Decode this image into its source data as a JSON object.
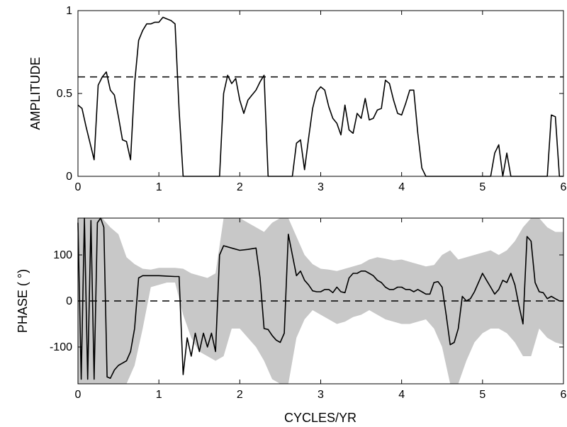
{
  "chart_data": [
    {
      "type": "line",
      "xlabel": "",
      "ylabel": "AMPLITUDE",
      "xlim": [
        0,
        6
      ],
      "ylim": [
        0,
        1
      ],
      "xticks": [
        "0",
        "1",
        "2",
        "3",
        "4",
        "5",
        "6"
      ],
      "yticks": [
        "0",
        "0.5",
        "1"
      ],
      "reference_line": {
        "y": 0.6,
        "style": "dashed"
      },
      "series": [
        {
          "x": [
            0,
            0.05,
            0.1,
            0.15,
            0.2,
            0.25,
            0.3,
            0.35,
            0.4,
            0.45,
            0.5,
            0.55,
            0.6,
            0.65,
            0.7,
            0.75,
            0.8,
            0.85,
            0.9,
            0.95,
            1.0,
            1.05,
            1.1,
            1.15,
            1.2,
            1.25,
            1.3,
            1.35,
            1.4,
            1.45,
            1.5,
            1.55,
            1.6,
            1.65,
            1.7,
            1.75,
            1.8,
            1.85,
            1.9,
            1.95,
            2.0,
            2.05,
            2.1,
            2.15,
            2.2,
            2.25,
            2.3,
            2.35,
            2.4,
            2.45,
            2.5,
            2.55,
            2.6,
            2.65,
            2.7,
            2.75,
            2.8,
            2.85,
            2.9,
            2.95,
            3.0,
            3.05,
            3.1,
            3.15,
            3.2,
            3.25,
            3.3,
            3.35,
            3.4,
            3.45,
            3.5,
            3.55,
            3.6,
            3.65,
            3.7,
            3.75,
            3.8,
            3.85,
            3.9,
            3.95,
            4.0,
            4.05,
            4.1,
            4.15,
            4.2,
            4.25,
            4.3,
            4.35,
            4.4,
            4.45,
            4.5,
            4.55,
            4.6,
            4.65,
            4.7,
            4.75,
            4.8,
            4.85,
            4.9,
            4.95,
            5.0,
            5.05,
            5.1,
            5.15,
            5.2,
            5.25,
            5.3,
            5.35,
            5.4,
            5.45,
            5.5,
            5.55,
            5.6,
            5.65,
            5.7,
            5.75,
            5.8,
            5.85,
            5.9,
            5.95,
            6.0
          ],
          "values": [
            0.43,
            0.41,
            0.3,
            0.2,
            0.1,
            0.55,
            0.6,
            0.63,
            0.52,
            0.49,
            0.36,
            0.22,
            0.21,
            0.1,
            0.56,
            0.82,
            0.88,
            0.92,
            0.92,
            0.93,
            0.93,
            0.96,
            0.95,
            0.94,
            0.92,
            0.4,
            0.0,
            0.0,
            0.0,
            0.0,
            0.0,
            0.0,
            0.0,
            0.0,
            0.0,
            0.0,
            0.5,
            0.61,
            0.56,
            0.59,
            0.46,
            0.38,
            0.46,
            0.49,
            0.52,
            0.57,
            0.61,
            0.0,
            0.0,
            0.0,
            0.0,
            0.0,
            0.0,
            0.0,
            0.2,
            0.22,
            0.04,
            0.23,
            0.41,
            0.51,
            0.54,
            0.52,
            0.42,
            0.35,
            0.32,
            0.25,
            0.43,
            0.28,
            0.26,
            0.38,
            0.35,
            0.47,
            0.34,
            0.35,
            0.4,
            0.41,
            0.58,
            0.56,
            0.46,
            0.38,
            0.37,
            0.44,
            0.52,
            0.52,
            0.26,
            0.05,
            0.0,
            0.0,
            0.0,
            0.0,
            0.0,
            0.0,
            0.0,
            0.0,
            0.0,
            0.0,
            0.0,
            0.0,
            0.0,
            0.0,
            0.0,
            0.0,
            0.0,
            0.14,
            0.19,
            0.0,
            0.14,
            0.0,
            0.0,
            0.0,
            0.0,
            0.0,
            0.0,
            0.0,
            0.0,
            0.0,
            0.0,
            0.37,
            0.36,
            0.0,
            0.0
          ]
        }
      ]
    },
    {
      "type": "line",
      "xlabel": "CYCLES/YR",
      "ylabel": "PHASE ( °)",
      "xlim": [
        0,
        6
      ],
      "ylim": [
        -180,
        180
      ],
      "xticks": [
        "0",
        "1",
        "2",
        "3",
        "4",
        "5",
        "6"
      ],
      "yticks": [
        "-100",
        "0",
        "100"
      ],
      "reference_line": {
        "y": 0,
        "style": "dashed"
      },
      "band_color": "#c8c8c8",
      "band": {
        "x": [
          0,
          0.1,
          0.2,
          0.3,
          0.4,
          0.5,
          0.6,
          0.7,
          0.8,
          0.9,
          1.0,
          1.1,
          1.2,
          1.3,
          1.4,
          1.5,
          1.6,
          1.7,
          1.8,
          1.9,
          2.0,
          2.1,
          2.2,
          2.3,
          2.4,
          2.5,
          2.6,
          2.7,
          2.8,
          2.9,
          3.0,
          3.1,
          3.2,
          3.3,
          3.4,
          3.5,
          3.6,
          3.7,
          3.8,
          3.9,
          4.0,
          4.1,
          4.2,
          4.3,
          4.4,
          4.5,
          4.6,
          4.7,
          4.8,
          4.9,
          5.0,
          5.1,
          5.2,
          5.3,
          5.4,
          5.5,
          5.6,
          5.7,
          5.8,
          5.9,
          6.0
        ],
        "upper": [
          180,
          180,
          180,
          180,
          160,
          145,
          95,
          80,
          70,
          68,
          72,
          72,
          72,
          70,
          60,
          55,
          50,
          60,
          180,
          180,
          180,
          170,
          160,
          150,
          170,
          180,
          180,
          140,
          100,
          80,
          70,
          68,
          65,
          70,
          75,
          80,
          90,
          95,
          92,
          88,
          90,
          85,
          80,
          75,
          78,
          100,
          110,
          90,
          95,
          100,
          105,
          110,
          100,
          110,
          130,
          160,
          180,
          180,
          160,
          150,
          150
        ],
        "lower": [
          -180,
          -180,
          -180,
          -180,
          -180,
          -180,
          -180,
          -140,
          -60,
          30,
          35,
          40,
          40,
          -30,
          -80,
          -110,
          -120,
          -130,
          -120,
          -60,
          -60,
          -80,
          -100,
          -130,
          -170,
          -180,
          -180,
          -80,
          -40,
          -20,
          -30,
          -40,
          -50,
          -45,
          -35,
          -30,
          -20,
          -30,
          -40,
          -45,
          -50,
          -50,
          -45,
          -40,
          -60,
          -100,
          -180,
          -180,
          -130,
          -90,
          -70,
          -60,
          -60,
          -70,
          -90,
          -120,
          -120,
          -60,
          -80,
          -90,
          -95
        ]
      },
      "series": [
        {
          "x": [
            0,
            0.04,
            0.08,
            0.12,
            0.16,
            0.2,
            0.24,
            0.28,
            0.32,
            0.36,
            0.4,
            0.45,
            0.5,
            0.55,
            0.6,
            0.65,
            0.7,
            0.75,
            0.8,
            0.9,
            1.0,
            1.1,
            1.2,
            1.25,
            1.3,
            1.35,
            1.4,
            1.45,
            1.5,
            1.55,
            1.6,
            1.65,
            1.7,
            1.75,
            1.8,
            1.9,
            2.0,
            2.1,
            2.2,
            2.25,
            2.3,
            2.35,
            2.4,
            2.45,
            2.5,
            2.55,
            2.6,
            2.65,
            2.7,
            2.75,
            2.8,
            2.85,
            2.9,
            2.95,
            3.0,
            3.05,
            3.1,
            3.15,
            3.2,
            3.25,
            3.3,
            3.35,
            3.4,
            3.45,
            3.5,
            3.55,
            3.6,
            3.65,
            3.7,
            3.75,
            3.8,
            3.85,
            3.9,
            3.95,
            4.0,
            4.05,
            4.1,
            4.15,
            4.2,
            4.25,
            4.3,
            4.35,
            4.4,
            4.45,
            4.5,
            4.55,
            4.6,
            4.65,
            4.7,
            4.75,
            4.8,
            4.85,
            4.9,
            4.95,
            5.0,
            5.05,
            5.1,
            5.15,
            5.2,
            5.25,
            5.3,
            5.35,
            5.4,
            5.45,
            5.5,
            5.55,
            5.6,
            5.65,
            5.7,
            5.75,
            5.8,
            5.85,
            5.9,
            5.95,
            6.0
          ],
          "values": [
            170,
            -170,
            180,
            -170,
            175,
            -170,
            170,
            180,
            160,
            -165,
            -168,
            -150,
            -140,
            -135,
            -130,
            -110,
            -60,
            50,
            55,
            55,
            55,
            54,
            53,
            53,
            -160,
            -80,
            -120,
            -70,
            -110,
            -70,
            -100,
            -70,
            -110,
            100,
            120,
            115,
            110,
            112,
            115,
            50,
            -60,
            -62,
            -75,
            -85,
            -90,
            -70,
            145,
            100,
            55,
            65,
            45,
            35,
            22,
            20,
            20,
            25,
            25,
            18,
            30,
            20,
            18,
            50,
            60,
            60,
            65,
            65,
            60,
            55,
            45,
            40,
            30,
            25,
            25,
            30,
            30,
            25,
            25,
            20,
            25,
            20,
            15,
            15,
            40,
            42,
            30,
            -30,
            -95,
            -90,
            -60,
            10,
            0,
            5,
            20,
            40,
            60,
            45,
            30,
            15,
            25,
            45,
            40,
            60,
            35,
            -10,
            -50,
            140,
            130,
            40,
            20,
            18,
            5,
            10,
            5,
            0,
            0
          ]
        }
      ]
    }
  ]
}
